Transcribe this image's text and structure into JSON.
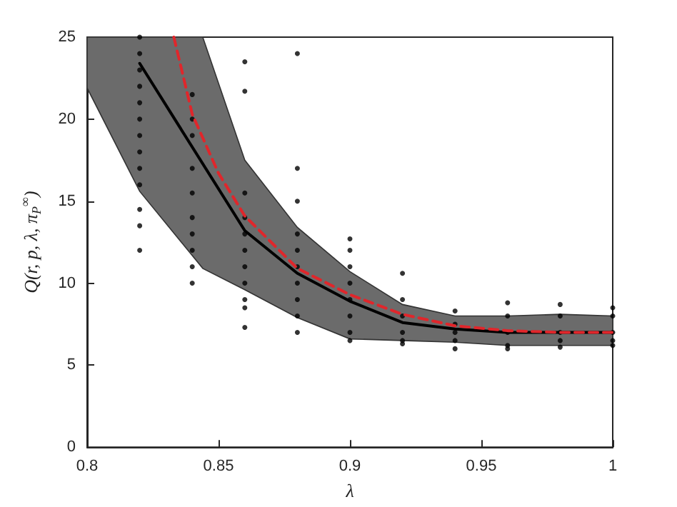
{
  "chart_data": {
    "type": "line",
    "xlabel": "λ",
    "ylabel": "Q(r, p, λ, π$_{P}$$^{∞}$)",
    "xlim": [
      0.8,
      1
    ],
    "xticks": [
      0.8,
      0.85,
      0.9,
      0.95,
      1
    ],
    "ylim": [
      0,
      25
    ],
    "yticks": [
      0,
      5,
      10,
      15,
      20,
      25
    ],
    "grid": false,
    "series": [
      {
        "color": "#000000",
        "line_style": "solid",
        "marker": "none",
        "x": [
          0.8,
          0.82,
          0.844,
          0.86,
          0.88,
          0.9,
          0.92,
          0.94,
          0.96,
          0.98,
          1
        ],
        "values": [
          null,
          23.4,
          null,
          13.2,
          10.6,
          8.9,
          7.6,
          7.2,
          7.0,
          7.0,
          7.0
        ],
        "lower": [
          21.9,
          15.6,
          10.9,
          9.6,
          7.9,
          6.6,
          6.5,
          6.4,
          6.2,
          6.2,
          6.2
        ],
        "upper": [
          25,
          25,
          25,
          17.5,
          13.4,
          10.7,
          8.7,
          8.0,
          8.0,
          8.1,
          8.0
        ]
      },
      {
        "color": "#e0262b",
        "line_style": "dashed",
        "marker": "none",
        "x": [
          0.833,
          0.84,
          0.85,
          0.86,
          0.88,
          0.9,
          0.92,
          0.94,
          0.96,
          0.98,
          1
        ],
        "values": [
          25,
          20.3,
          16.7,
          14.1,
          10.9,
          9.3,
          8.1,
          7.4,
          7.1,
          7.0,
          7.0
        ]
      },
      {
        "type": "scatter",
        "color": "#000000",
        "marker": "circle",
        "x": [
          0.82,
          0.82,
          0.82,
          0.82,
          0.82,
          0.82,
          0.82,
          0.82,
          0.82,
          0.82,
          0.82,
          0.82,
          0.82,
          0.84,
          0.84,
          0.84,
          0.84,
          0.84,
          0.84,
          0.84,
          0.84,
          0.84,
          0.84,
          0.86,
          0.86,
          0.86,
          0.86,
          0.86,
          0.86,
          0.86,
          0.86,
          0.86,
          0.86,
          0.86,
          0.88,
          0.88,
          0.88,
          0.88,
          0.88,
          0.88,
          0.88,
          0.88,
          0.88,
          0.88,
          0.9,
          0.9,
          0.9,
          0.9,
          0.9,
          0.9,
          0.9,
          0.9,
          0.92,
          0.92,
          0.92,
          0.92,
          0.92,
          0.92,
          0.94,
          0.94,
          0.94,
          0.94,
          0.94,
          0.96,
          0.96,
          0.96,
          0.96,
          0.96,
          0.98,
          0.98,
          0.98,
          0.98,
          0.98,
          1,
          1,
          1,
          1,
          1
        ],
        "values": [
          25,
          24,
          23,
          22,
          21,
          20,
          19,
          18,
          17,
          16,
          14.5,
          13.5,
          12,
          21.5,
          20,
          19,
          17,
          15.5,
          14,
          13,
          12,
          11,
          10,
          23.5,
          21.7,
          15.5,
          14,
          13,
          12,
          11,
          10,
          9,
          8.5,
          7.3,
          24,
          17,
          15,
          13,
          12,
          11,
          10,
          9,
          8,
          7,
          12.7,
          12,
          11,
          10,
          9,
          8,
          7,
          6.5,
          10.6,
          9,
          8,
          7,
          6.5,
          6.3,
          8.3,
          7.5,
          7,
          6.5,
          6,
          8.8,
          8,
          7,
          6.2,
          6,
          8.7,
          8,
          7,
          6.5,
          6.1,
          8.5,
          8,
          7,
          6.5,
          6.2
        ]
      }
    ]
  }
}
